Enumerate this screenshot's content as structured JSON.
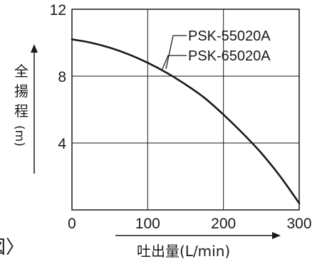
{
  "decor": {
    "bracket_top_right": "〉",
    "bracket_bottom_left": "図〉"
  },
  "chart_data": {
    "type": "line",
    "title": "",
    "xlabel": "吐出量(L/min)",
    "ylabel_chars": [
      "全",
      "揚",
      "程",
      "(m)"
    ],
    "xlim": [
      0,
      300
    ],
    "ylim": [
      0,
      12
    ],
    "x_ticks": [
      0,
      100,
      200,
      300
    ],
    "y_ticks": [
      4,
      8,
      12
    ],
    "x_tick_labels": [
      "0",
      "100",
      "200",
      "300"
    ],
    "y_tick_labels": [
      "4",
      "8",
      "12"
    ],
    "grid": true,
    "legend": {
      "placement": "top-right",
      "entries": [
        "PSK-55020A",
        "PSK-65020A"
      ]
    },
    "series": [
      {
        "name": "PSK-55020A / PSK-65020A",
        "x": [
          0,
          25,
          50,
          75,
          100,
          125,
          150,
          175,
          200,
          225,
          250,
          275,
          300
        ],
        "y": [
          10.2,
          10.0,
          9.7,
          9.3,
          8.8,
          8.2,
          7.5,
          6.7,
          5.7,
          4.6,
          3.4,
          2.0,
          0.4
        ]
      }
    ]
  },
  "colors": {
    "line": "#1a1a1a",
    "grid": "#1a1a1a",
    "text": "#1a1a1a",
    "background": "#ffffff"
  }
}
